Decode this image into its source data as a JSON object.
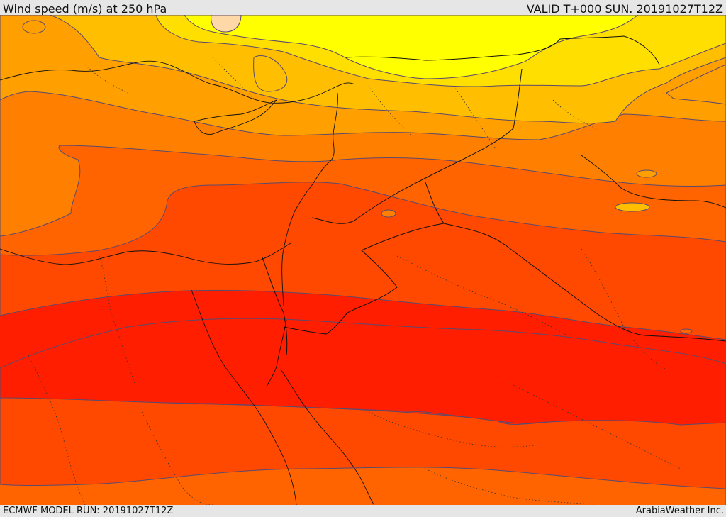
{
  "header": {
    "title": "Wind speed (m/s) at 250 hPa",
    "valid": "VALID T+000 SUN. 20191027T12Z"
  },
  "footer": {
    "run": "ECMWF MODEL RUN: 20191027T12Z",
    "credit": "ArabiaWeather Inc."
  },
  "map": {
    "parameter": "Wind speed at 250 hPa",
    "palette": {
      "band_1": "#ffff00",
      "band_2": "#ffdf00",
      "band_3": "#ffbf00",
      "band_4": "#ff9f00",
      "band_5": "#ff8000",
      "band_6": "#ff6400",
      "band_7": "#ff4800",
      "band_8": "#ff2a00",
      "band_9": "#ff1e00",
      "pocket": "#ffd8a8"
    },
    "line_colors": {
      "contour": "#5a4a6e",
      "border": "#111111",
      "internal_border": "#333333"
    }
  }
}
